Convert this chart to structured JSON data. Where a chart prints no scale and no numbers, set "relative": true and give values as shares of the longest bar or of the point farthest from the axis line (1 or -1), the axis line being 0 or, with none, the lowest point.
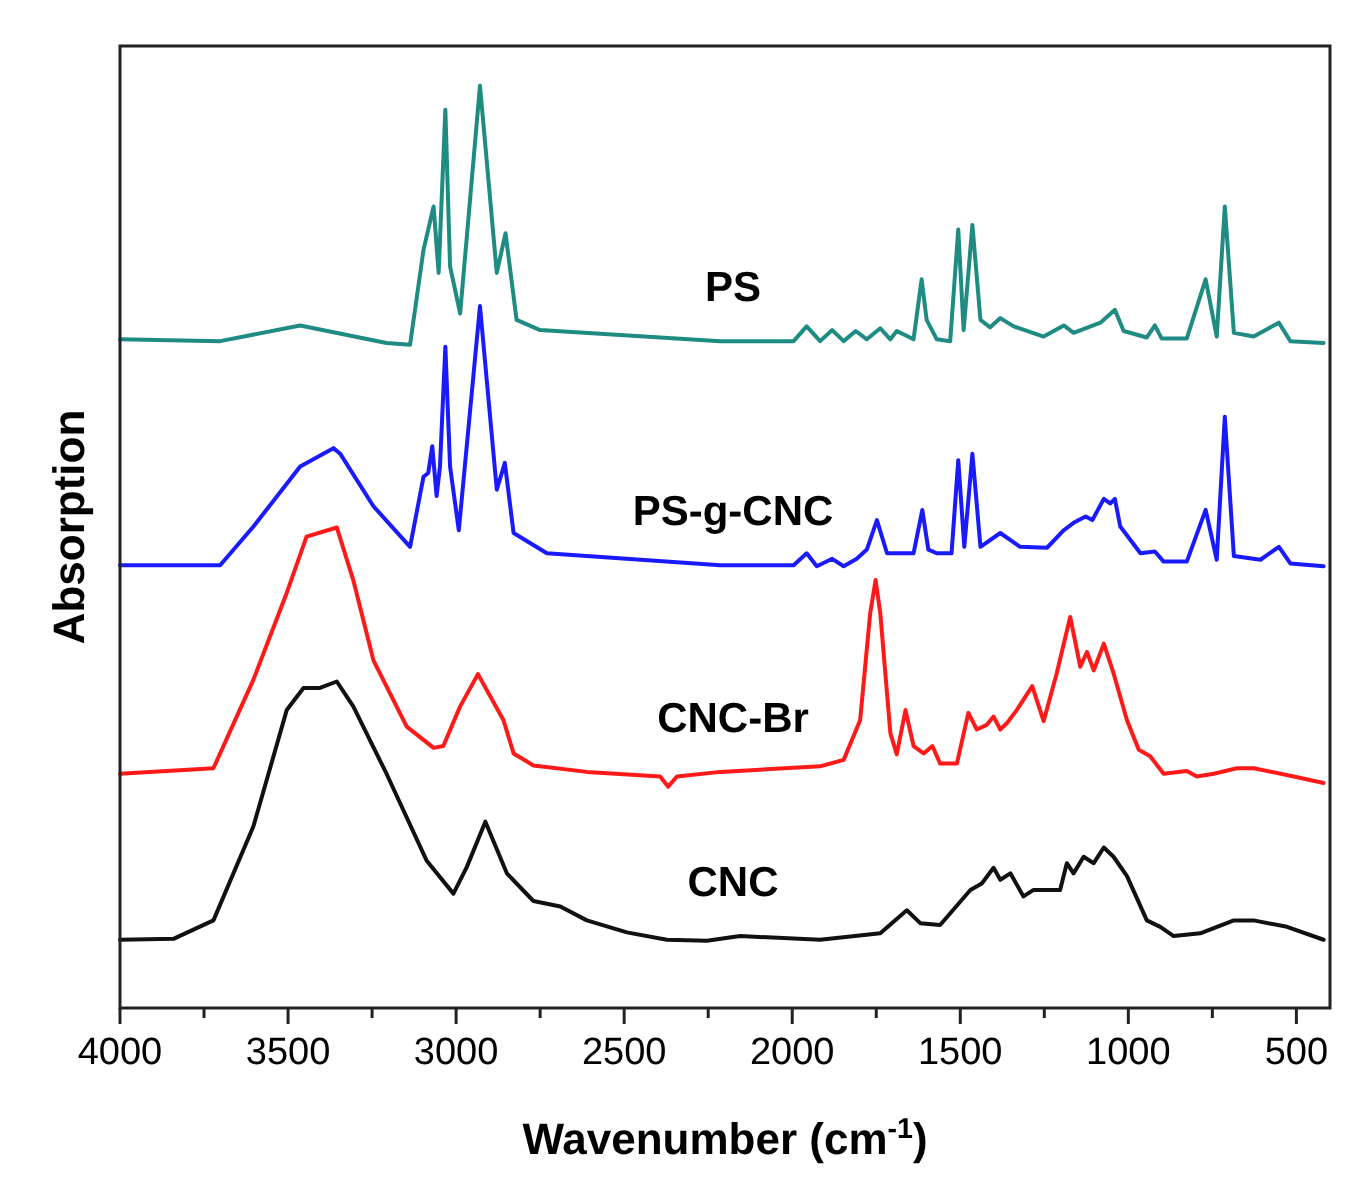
{
  "chart_data": {
    "type": "line",
    "xlabel": "Wavenumber (cm$^{-1}$)",
    "ylabel": "Absorption",
    "relative": true,
    "xlim": [
      4000,
      400
    ],
    "xticks": [
      4000,
      {
        "value": 3750,
        "label": null
      },
      3500,
      {
        "value": 3250,
        "label": null
      },
      3000,
      {
        "value": 2750,
        "label": null
      },
      2500,
      {
        "value": 2250,
        "label": null
      },
      2000,
      {
        "value": 1750,
        "label": null
      },
      1500,
      {
        "value": 1250,
        "label": null
      },
      1000,
      {
        "value": 750,
        "label": null
      },
      500
    ],
    "grid": false,
    "legend": false,
    "marker": "none",
    "line_style": "solid",
    "series": [
      {
        "name": "PS",
        "color": "#1e8c82",
        "x": [
          4000,
          3702,
          3464,
          3207,
          3137,
          3097,
          3067,
          3052,
          3032,
          3018,
          2988,
          2929,
          2879,
          2853,
          2820,
          2750,
          2214,
          1996,
          1957,
          1917,
          1881,
          1847,
          1811,
          1778,
          1738,
          1708,
          1689,
          1639,
          1615,
          1600,
          1570,
          1530,
          1506,
          1490,
          1464,
          1440,
          1411,
          1381,
          1341,
          1252,
          1192,
          1163,
          1083,
          1040,
          1014,
          945,
          921,
          901,
          826,
          770,
          737,
          713,
          686,
          627,
          552,
          518,
          419
        ],
        "values": [
          0.725,
          0.723,
          0.74,
          0.721,
          0.719,
          0.822,
          0.869,
          0.797,
          0.974,
          0.804,
          0.753,
          1.0,
          0.797,
          0.84,
          0.746,
          0.735,
          0.723,
          0.723,
          0.739,
          0.723,
          0.735,
          0.723,
          0.734,
          0.725,
          0.737,
          0.725,
          0.734,
          0.725,
          0.79,
          0.746,
          0.725,
          0.723,
          0.844,
          0.735,
          0.849,
          0.746,
          0.738,
          0.748,
          0.739,
          0.728,
          0.74,
          0.732,
          0.743,
          0.757,
          0.734,
          0.727,
          0.74,
          0.726,
          0.726,
          0.79,
          0.728,
          0.869,
          0.732,
          0.728,
          0.743,
          0.723,
          0.721
        ]
      },
      {
        "name": "PS-g-CNC",
        "color": "#1a1aff",
        "x": [
          4000,
          3702,
          3603,
          3464,
          3365,
          3345,
          3246,
          3137,
          3097,
          3083,
          3071,
          3058,
          3048,
          3032,
          3018,
          2992,
          2929,
          2879,
          2855,
          2829,
          2730,
          2214,
          1996,
          1957,
          1927,
          1881,
          1847,
          1808,
          1778,
          1748,
          1718,
          1669,
          1639,
          1613,
          1595,
          1570,
          1526,
          1506,
          1488,
          1464,
          1440,
          1381,
          1322,
          1242,
          1192,
          1163,
          1127,
          1107,
          1073,
          1054,
          1040,
          1024,
          964,
          921,
          895,
          826,
          770,
          737,
          713,
          686,
          607,
          552,
          518,
          419
        ],
        "values": [
          0.48,
          0.48,
          0.522,
          0.587,
          0.607,
          0.601,
          0.544,
          0.5,
          0.576,
          0.58,
          0.609,
          0.555,
          0.587,
          0.717,
          0.587,
          0.518,
          0.761,
          0.562,
          0.591,
          0.515,
          0.493,
          0.48,
          0.48,
          0.493,
          0.479,
          0.487,
          0.479,
          0.487,
          0.497,
          0.529,
          0.493,
          0.493,
          0.493,
          0.54,
          0.497,
          0.493,
          0.493,
          0.594,
          0.5,
          0.601,
          0.5,
          0.515,
          0.5,
          0.499,
          0.518,
          0.526,
          0.533,
          0.529,
          0.552,
          0.547,
          0.552,
          0.522,
          0.493,
          0.495,
          0.484,
          0.484,
          0.54,
          0.486,
          0.641,
          0.49,
          0.486,
          0.5,
          0.482,
          0.479
        ]
      },
      {
        "name": "CNC-Br",
        "color": "#ff1a1a",
        "x": [
          4000,
          3722,
          3603,
          3504,
          3445,
          3355,
          3306,
          3246,
          3147,
          3067,
          3038,
          2988,
          2935,
          2859,
          2829,
          2770,
          2611,
          2393,
          2369,
          2343,
          2214,
          1917,
          1847,
          1798,
          1768,
          1752,
          1738,
          1708,
          1689,
          1663,
          1639,
          1609,
          1583,
          1560,
          1510,
          1476,
          1451,
          1421,
          1401,
          1381,
          1361,
          1332,
          1286,
          1252,
          1213,
          1173,
          1143,
          1123,
          1103,
          1073,
          1044,
          1004,
          969,
          935,
          895,
          826,
          796,
          746,
          677,
          627,
          508,
          419
        ],
        "values": [
          0.254,
          0.26,
          0.356,
          0.45,
          0.511,
          0.521,
          0.464,
          0.377,
          0.305,
          0.282,
          0.284,
          0.327,
          0.362,
          0.312,
          0.276,
          0.263,
          0.256,
          0.251,
          0.24,
          0.251,
          0.256,
          0.262,
          0.269,
          0.312,
          0.428,
          0.464,
          0.428,
          0.298,
          0.275,
          0.323,
          0.284,
          0.276,
          0.284,
          0.265,
          0.265,
          0.32,
          0.302,
          0.307,
          0.316,
          0.302,
          0.309,
          0.323,
          0.349,
          0.311,
          0.363,
          0.424,
          0.37,
          0.386,
          0.366,
          0.395,
          0.363,
          0.312,
          0.28,
          0.273,
          0.254,
          0.257,
          0.251,
          0.254,
          0.26,
          0.26,
          0.251,
          0.244
        ]
      },
      {
        "name": "CNC",
        "color": "#111111",
        "x": [
          4000,
          3841,
          3722,
          3603,
          3504,
          3454,
          3405,
          3355,
          3306,
          3207,
          3088,
          3008,
          2968,
          2913,
          2849,
          2770,
          2690,
          2611,
          2492,
          2373,
          2254,
          2155,
          1917,
          1738,
          1659,
          1619,
          1560,
          1470,
          1436,
          1401,
          1381,
          1351,
          1312,
          1282,
          1203,
          1183,
          1163,
          1133,
          1103,
          1073,
          1044,
          1004,
          945,
          905,
          865,
          786,
          686,
          627,
          528,
          419
        ],
        "values": [
          0.074,
          0.075,
          0.095,
          0.197,
          0.323,
          0.347,
          0.347,
          0.354,
          0.327,
          0.254,
          0.16,
          0.124,
          0.153,
          0.202,
          0.146,
          0.116,
          0.11,
          0.095,
          0.082,
          0.074,
          0.073,
          0.078,
          0.074,
          0.081,
          0.106,
          0.092,
          0.09,
          0.128,
          0.135,
          0.152,
          0.139,
          0.146,
          0.121,
          0.128,
          0.128,
          0.157,
          0.146,
          0.164,
          0.157,
          0.174,
          0.164,
          0.143,
          0.095,
          0.088,
          0.078,
          0.081,
          0.095,
          0.095,
          0.088,
          0.074
        ]
      }
    ]
  }
}
